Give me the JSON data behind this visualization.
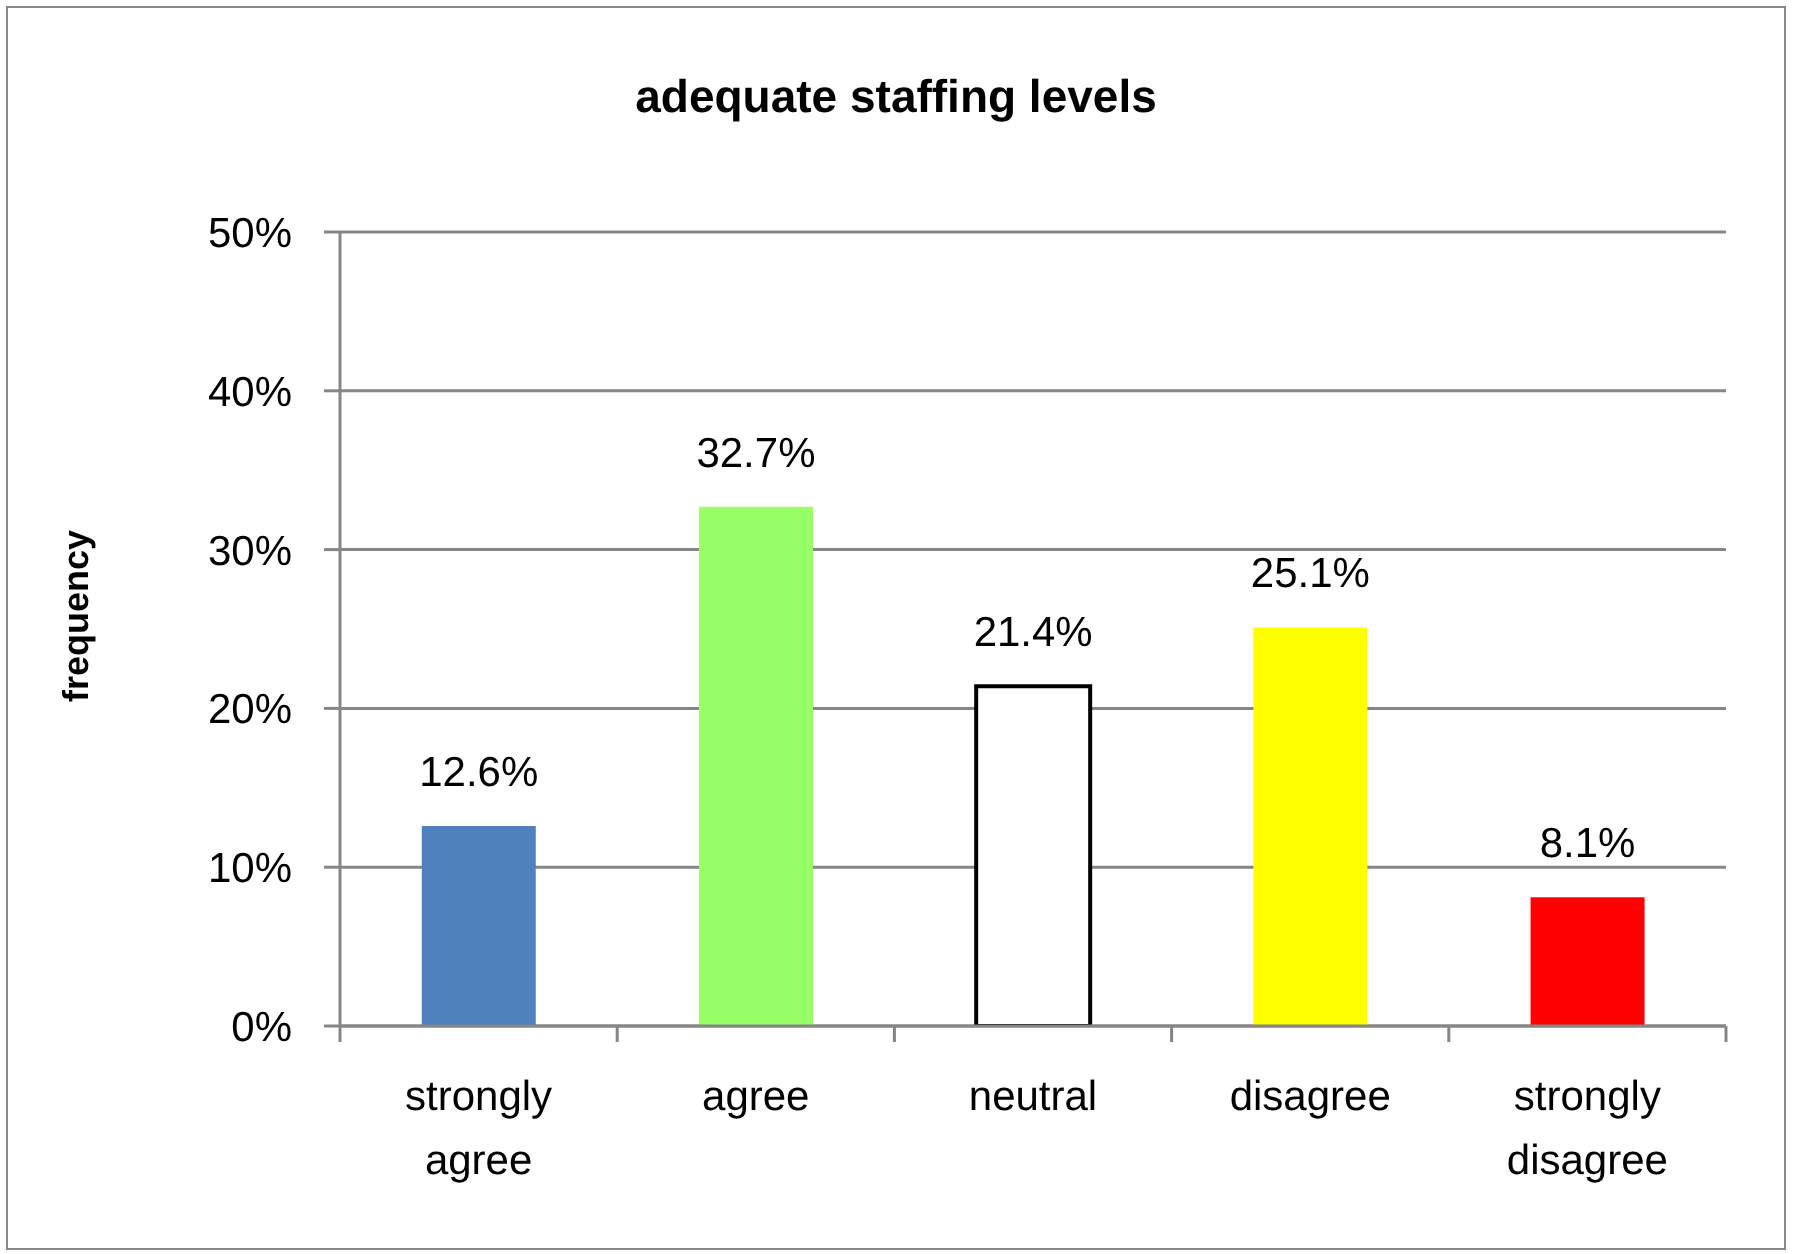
{
  "chart_data": {
    "type": "bar",
    "title": "adequate staffing levels",
    "ylabel": "frequency",
    "categories": [
      "strongly agree",
      "agree",
      "neutral",
      "disagree",
      "strongly disagree"
    ],
    "values": [
      12.6,
      32.7,
      21.4,
      25.1,
      8.1
    ],
    "colors": [
      "#4f81bd",
      "#99ff66",
      "#ffffff",
      "#ffff00",
      "#ff0000"
    ],
    "value_labels": [
      "12.6%",
      "32.7%",
      "21.4%",
      "25.1%",
      "8.1%"
    ],
    "ylim": [
      0,
      50
    ],
    "yticks": [
      {
        "value": 0,
        "label": "0%"
      },
      {
        "value": 10,
        "label": "10%"
      },
      {
        "value": 20,
        "label": "20%"
      },
      {
        "value": 30,
        "label": "30%"
      },
      {
        "value": 40,
        "label": "40%"
      },
      {
        "value": 50,
        "label": "50%"
      }
    ],
    "grid": "y"
  }
}
